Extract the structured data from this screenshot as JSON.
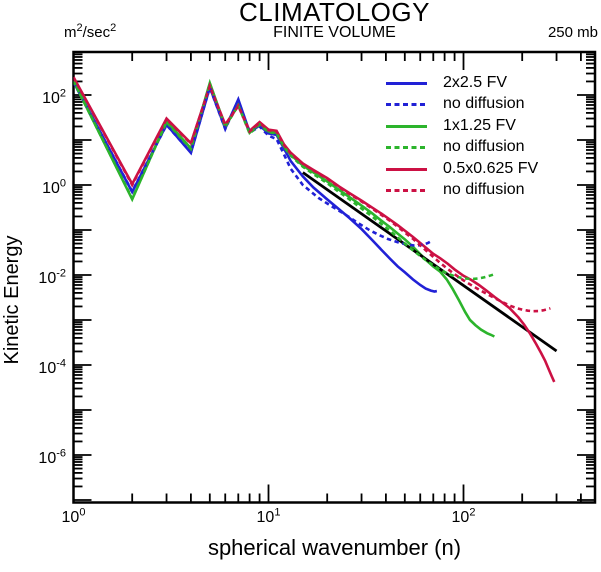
{
  "header": {
    "title": "CLIMATOLOGY",
    "subtitle": "FINITE VOLUME",
    "units_base": "m",
    "units_exp1": "2",
    "units_mid": "/sec",
    "units_exp2": "2",
    "pressure": "250 mb"
  },
  "axes": {
    "x_label": "spherical wavenumber (n)",
    "y_label": "Kinetic Energy",
    "x_scale": "log",
    "y_scale": "log",
    "x_range": [
      1,
      473
    ],
    "y_range": [
      8.7e-08,
      900.0
    ],
    "x_tick_exponents": [
      0,
      1,
      2
    ],
    "y_tick_exponents": [
      2,
      0,
      -2,
      -4,
      -6
    ]
  },
  "legend": [
    {
      "label": "2x2.5 FV",
      "color": "#2121d6",
      "dash": false
    },
    {
      "label": "no diffusion",
      "color": "#2121d6",
      "dash": true
    },
    {
      "label": "1x1.25 FV",
      "color": "#2cb42c",
      "dash": false
    },
    {
      "label": "no diffusion",
      "color": "#2cb42c",
      "dash": true
    },
    {
      "label": "0.5x0.625 FV",
      "color": "#cc1144",
      "dash": false
    },
    {
      "label": "no diffusion",
      "color": "#cc1144",
      "dash": true
    }
  ],
  "chart_data": {
    "type": "line",
    "title": "CLIMATOLOGY",
    "subtitle": "FINITE VOLUME",
    "xlabel": "spherical wavenumber (n)",
    "ylabel": "Kinetic Energy",
    "units": "m2/sec2",
    "level": "250 mb",
    "x_scale": "log",
    "y_scale": "log",
    "xlim": [
      1,
      473
    ],
    "ylim": [
      8.7e-08,
      900.0
    ],
    "grid": false,
    "legend_position": "top-right",
    "series": [
      {
        "name": "2x2.5 FV",
        "color": "#2121d6",
        "dash": false,
        "points": [
          [
            1,
            195
          ],
          [
            2,
            0.7
          ],
          [
            3,
            22
          ],
          [
            4,
            5.2
          ],
          [
            5,
            148
          ],
          [
            6,
            18
          ],
          [
            7,
            80
          ],
          [
            8,
            15
          ],
          [
            9,
            21
          ],
          [
            10,
            14
          ],
          [
            11,
            13
          ],
          [
            12,
            6.5
          ],
          [
            13,
            3.4
          ],
          [
            15,
            1.55
          ],
          [
            17,
            0.88
          ],
          [
            20,
            0.48
          ],
          [
            23,
            0.29
          ],
          [
            26,
            0.185
          ],
          [
            30,
            0.105
          ],
          [
            34,
            0.06
          ],
          [
            38,
            0.036
          ],
          [
            42,
            0.023
          ],
          [
            46,
            0.0155
          ],
          [
            50,
            0.0115
          ],
          [
            55,
            0.008
          ],
          [
            60,
            0.006
          ],
          [
            64,
            0.005
          ],
          [
            68,
            0.0045
          ],
          [
            71,
            0.0043
          ],
          [
            73,
            0.0044
          ]
        ]
      },
      {
        "name": "2x2.5 FV no diffusion",
        "color": "#2121d6",
        "dash": true,
        "points": [
          [
            1,
            193
          ],
          [
            2,
            0.72
          ],
          [
            3,
            21.5
          ],
          [
            4,
            5.3
          ],
          [
            5,
            146
          ],
          [
            6,
            17.5
          ],
          [
            7,
            77
          ],
          [
            8,
            14.5
          ],
          [
            9,
            20
          ],
          [
            10,
            12.5
          ],
          [
            11,
            10.5
          ],
          [
            12,
            4.8
          ],
          [
            13,
            2.3
          ],
          [
            15,
            1.0
          ],
          [
            18,
            0.52
          ],
          [
            21,
            0.34
          ],
          [
            25,
            0.215
          ],
          [
            29,
            0.14
          ],
          [
            33,
            0.099
          ],
          [
            37,
            0.077
          ],
          [
            41,
            0.063
          ],
          [
            46,
            0.0535
          ],
          [
            51,
            0.048
          ],
          [
            56,
            0.0452
          ],
          [
            60,
            0.0458
          ],
          [
            63,
            0.048
          ],
          [
            66,
            0.052
          ],
          [
            69,
            0.058
          ]
        ]
      },
      {
        "name": "1x1.25 FV",
        "color": "#2cb42c",
        "dash": false,
        "points": [
          [
            1,
            205
          ],
          [
            2,
            0.48
          ],
          [
            3,
            26
          ],
          [
            4,
            6.5
          ],
          [
            5,
            185
          ],
          [
            6,
            20
          ],
          [
            7,
            60
          ],
          [
            8,
            14.5
          ],
          [
            9,
            23
          ],
          [
            10,
            15.5
          ],
          [
            11,
            14.5
          ],
          [
            12,
            7.2
          ],
          [
            13,
            4.7
          ],
          [
            15,
            2.7
          ],
          [
            17,
            1.9
          ],
          [
            20,
            1.2
          ],
          [
            23,
            0.78
          ],
          [
            26,
            0.54
          ],
          [
            30,
            0.35
          ],
          [
            34,
            0.235
          ],
          [
            38,
            0.16
          ],
          [
            42,
            0.115
          ],
          [
            46,
            0.083
          ],
          [
            50,
            0.062
          ],
          [
            55,
            0.0425
          ],
          [
            60,
            0.029
          ],
          [
            65,
            0.0205
          ],
          [
            70,
            0.0155
          ],
          [
            76,
            0.0118
          ],
          [
            82,
            0.008
          ],
          [
            88,
            0.0049
          ],
          [
            95,
            0.0027
          ],
          [
            102,
            0.0015
          ],
          [
            108,
            0.001
          ],
          [
            115,
            0.00077
          ],
          [
            123,
            0.00061
          ],
          [
            132,
            0.00051
          ],
          [
            138,
            0.00047
          ],
          [
            144,
            0.00043
          ]
        ]
      },
      {
        "name": "1x1.25 FV no diffusion",
        "color": "#2cb42c",
        "dash": true,
        "points": [
          [
            1,
            203
          ],
          [
            2,
            0.5
          ],
          [
            3,
            25
          ],
          [
            4,
            6.3
          ],
          [
            5,
            182
          ],
          [
            6,
            19.5
          ],
          [
            7,
            59
          ],
          [
            8,
            14
          ],
          [
            9,
            22
          ],
          [
            10,
            15
          ],
          [
            11,
            14
          ],
          [
            12,
            7.0
          ],
          [
            13,
            4.5
          ],
          [
            15,
            2.55
          ],
          [
            17,
            1.75
          ],
          [
            20,
            1.1
          ],
          [
            23,
            0.7
          ],
          [
            26,
            0.48
          ],
          [
            30,
            0.3
          ],
          [
            34,
            0.2
          ],
          [
            38,
            0.135
          ],
          [
            42,
            0.096
          ],
          [
            46,
            0.068
          ],
          [
            50,
            0.05
          ],
          [
            55,
            0.0355
          ],
          [
            60,
            0.0265
          ],
          [
            66,
            0.0195
          ],
          [
            72,
            0.0152
          ],
          [
            78,
            0.0122
          ],
          [
            84,
            0.0105
          ],
          [
            90,
            0.0094
          ],
          [
            97,
            0.0087
          ],
          [
            104,
            0.0083
          ],
          [
            112,
            0.0082
          ],
          [
            120,
            0.0084
          ],
          [
            128,
            0.0089
          ],
          [
            136,
            0.0096
          ],
          [
            143,
            0.0103
          ]
        ]
      },
      {
        "name": "0.5x0.625 FV",
        "color": "#cc1144",
        "dash": false,
        "points": [
          [
            1,
            250
          ],
          [
            2,
            1.05
          ],
          [
            3,
            30
          ],
          [
            4,
            8.5
          ],
          [
            5,
            160
          ],
          [
            6,
            22
          ],
          [
            7,
            58
          ],
          [
            8,
            16
          ],
          [
            9,
            25
          ],
          [
            10,
            17
          ],
          [
            11,
            16
          ],
          [
            12,
            8.0
          ],
          [
            13,
            5.2
          ],
          [
            15,
            3.0
          ],
          [
            17,
            2.15
          ],
          [
            20,
            1.42
          ],
          [
            23,
            0.93
          ],
          [
            26,
            0.66
          ],
          [
            30,
            0.45
          ],
          [
            34,
            0.315
          ],
          [
            38,
            0.23
          ],
          [
            42,
            0.17
          ],
          [
            46,
            0.128
          ],
          [
            50,
            0.097
          ],
          [
            55,
            0.0705
          ],
          [
            60,
            0.0515
          ],
          [
            65,
            0.0385
          ],
          [
            70,
            0.0295
          ],
          [
            76,
            0.0235
          ],
          [
            83,
            0.0178
          ],
          [
            90,
            0.0133
          ],
          [
            100,
            0.0096
          ],
          [
            110,
            0.0077
          ],
          [
            120,
            0.006
          ],
          [
            132,
            0.0044
          ],
          [
            145,
            0.0032
          ],
          [
            158,
            0.00245
          ],
          [
            172,
            0.00185
          ],
          [
            191,
            0.00115
          ],
          [
            205,
            0.00078
          ],
          [
            220,
            0.00049
          ],
          [
            235,
            0.0003
          ],
          [
            250,
            0.000185
          ],
          [
            262,
            0.000125
          ],
          [
            273,
            8.2e-05
          ],
          [
            283,
            5.7e-05
          ],
          [
            292,
            4.2e-05
          ]
        ]
      },
      {
        "name": "0.5x0.625 FV no diffusion",
        "color": "#cc1144",
        "dash": true,
        "points": [
          [
            1,
            246
          ],
          [
            2,
            1.0
          ],
          [
            3,
            29
          ],
          [
            4,
            8.3
          ],
          [
            5,
            158
          ],
          [
            6,
            21.5
          ],
          [
            7,
            57
          ],
          [
            8,
            15.5
          ],
          [
            9,
            24
          ],
          [
            10,
            16.5
          ],
          [
            11,
            15.5
          ],
          [
            12,
            7.8
          ],
          [
            13,
            5.0
          ],
          [
            15,
            2.95
          ],
          [
            17,
            2.1
          ],
          [
            20,
            1.38
          ],
          [
            23,
            0.9
          ],
          [
            26,
            0.63
          ],
          [
            30,
            0.43
          ],
          [
            34,
            0.3
          ],
          [
            38,
            0.215
          ],
          [
            42,
            0.16
          ],
          [
            46,
            0.118
          ],
          [
            50,
            0.088
          ],
          [
            55,
            0.064
          ],
          [
            60,
            0.0455
          ],
          [
            65,
            0.0335
          ],
          [
            70,
            0.0252
          ],
          [
            76,
            0.0185
          ],
          [
            83,
            0.0136
          ],
          [
            90,
            0.0104
          ],
          [
            100,
            0.0076
          ],
          [
            110,
            0.0059
          ],
          [
            122,
            0.00455
          ],
          [
            134,
            0.00365
          ],
          [
            147,
            0.00295
          ],
          [
            160,
            0.00245
          ],
          [
            173,
            0.00208
          ],
          [
            187,
            0.00184
          ],
          [
            200,
            0.0017
          ],
          [
            214,
            0.00161
          ],
          [
            228,
            0.00157
          ],
          [
            242,
            0.00158
          ],
          [
            256,
            0.00164
          ],
          [
            268,
            0.00172
          ],
          [
            279,
            0.00182
          ]
        ]
      }
    ],
    "reference_line": {
      "name": "n^-3 reference",
      "color": "#000000",
      "points": [
        [
          15,
          1.9
        ],
        [
          300,
          0.000205
        ]
      ]
    }
  }
}
